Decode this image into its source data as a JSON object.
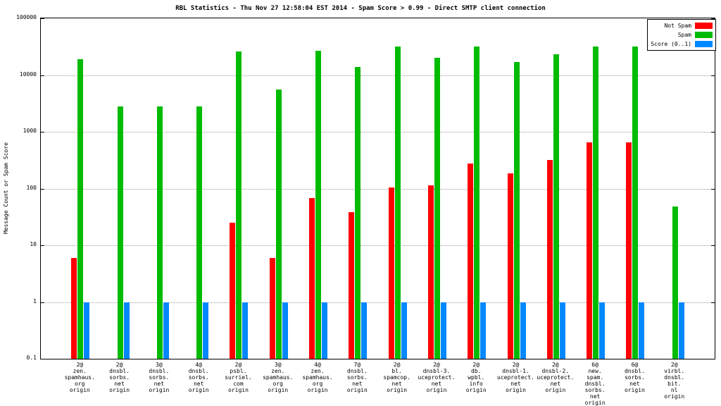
{
  "chart_data": {
    "type": "bar",
    "title": "RBL Statistics - Thu Nov 27 12:58:04 EST 2014 - Spam Score > 0.99 - Direct SMTP client connection",
    "ylabel": "Message Count or Spam Score",
    "xlabel": "",
    "yscale": "log",
    "ylim": [
      0.1,
      100000
    ],
    "ytick_values": [
      100000,
      10000,
      1000,
      100,
      10,
      1,
      0.1
    ],
    "grid": true,
    "legend_position": "top-right",
    "categories": [
      [
        "2@",
        "zen.",
        "spamhaus.",
        "org",
        "origin"
      ],
      [
        "2@",
        "dnsbl.",
        "sorbs.",
        "net",
        "origin"
      ],
      [
        "3@",
        "dnsbl.",
        "sorbs.",
        "net",
        "origin"
      ],
      [
        "4@",
        "dnsbl.",
        "sorbs.",
        "net",
        "origin"
      ],
      [
        "2@",
        "psbl.",
        "surriel.",
        "com",
        "origin"
      ],
      [
        "3@",
        "zen.",
        "spamhaus.",
        "org",
        "origin"
      ],
      [
        "4@",
        "zen.",
        "spamhaus.",
        "org",
        "origin"
      ],
      [
        "7@",
        "dnsbl.",
        "sorbs.",
        "net",
        "origin"
      ],
      [
        "2@",
        "bl.",
        "spamcop.",
        "net",
        "origin"
      ],
      [
        "2@",
        "dnsbl-3.",
        "uceprotect.",
        "net",
        "origin"
      ],
      [
        "2@",
        "db.",
        "wpbl.",
        "info",
        "origin"
      ],
      [
        "2@",
        "dnsbl-1.",
        "uceprotect.",
        "net",
        "origin"
      ],
      [
        "2@",
        "dnsbl-2.",
        "uceprotect.",
        "net",
        "origin"
      ],
      [
        "6@",
        "new.",
        "spam.",
        "dnsbl.",
        "sorbs.",
        "net",
        "origin"
      ],
      [
        "6@",
        "dnsbl.",
        "sorbs.",
        "net",
        "origin"
      ],
      [
        "2@",
        "virbl.",
        "dnsbl.",
        "bit.",
        "nl",
        "origin"
      ]
    ],
    "series": [
      {
        "name": "Not Spam",
        "color": "#ff0000",
        "values": [
          6,
          null,
          null,
          null,
          25,
          6,
          68,
          38,
          105,
          115,
          280,
          185,
          320,
          650,
          650,
          null
        ]
      },
      {
        "name": "Spam",
        "color": "#00bb00",
        "values": [
          19000,
          2800,
          2800,
          2800,
          26000,
          5500,
          27000,
          14000,
          32000,
          20000,
          32000,
          17000,
          23000,
          32000,
          32000,
          48
        ]
      },
      {
        "name": "Score (0..1)",
        "color": "#0088ff",
        "values": [
          1,
          1,
          1,
          1,
          1,
          1,
          1,
          1,
          1,
          1,
          1,
          1,
          1,
          1,
          1,
          1
        ]
      }
    ]
  }
}
